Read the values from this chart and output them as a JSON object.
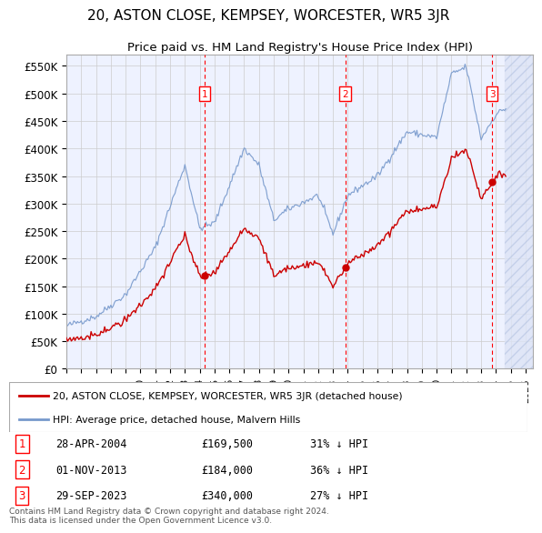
{
  "title": "20, ASTON CLOSE, KEMPSEY, WORCESTER, WR5 3JR",
  "subtitle": "Price paid vs. HM Land Registry's House Price Index (HPI)",
  "ylabel_ticks": [
    "£0",
    "£50K",
    "£100K",
    "£150K",
    "£200K",
    "£250K",
    "£300K",
    "£350K",
    "£400K",
    "£450K",
    "£500K",
    "£550K"
  ],
  "ytick_values": [
    0,
    50000,
    100000,
    150000,
    200000,
    250000,
    300000,
    350000,
    400000,
    450000,
    500000,
    550000
  ],
  "ylim": [
    0,
    570000
  ],
  "xlim_start": 1995.0,
  "xlim_end": 2026.5,
  "xtick_years": [
    1995,
    1996,
    1997,
    1998,
    1999,
    2000,
    2001,
    2002,
    2003,
    2004,
    2005,
    2006,
    2007,
    2008,
    2009,
    2010,
    2011,
    2012,
    2013,
    2014,
    2015,
    2016,
    2017,
    2018,
    2019,
    2020,
    2021,
    2022,
    2023,
    2024,
    2025,
    2026
  ],
  "plot_bg_color": "#eef2ff",
  "grid_color": "#cccccc",
  "hpi_color": "#7799cc",
  "price_color": "#cc0000",
  "legend_label_price": "20, ASTON CLOSE, KEMPSEY, WORCESTER, WR5 3JR (detached house)",
  "legend_label_hpi": "HPI: Average price, detached house, Malvern Hills",
  "transactions": [
    {
      "num": 1,
      "date": "28-APR-2004",
      "price": 169500,
      "pct": "31%",
      "dir": "↓",
      "x_year": 2004.32
    },
    {
      "num": 2,
      "date": "01-NOV-2013",
      "price": 184000,
      "pct": "36%",
      "dir": "↓",
      "x_year": 2013.83
    },
    {
      "num": 3,
      "date": "29-SEP-2023",
      "price": 340000,
      "pct": "27%",
      "dir": "↓",
      "x_year": 2023.75
    }
  ],
  "footer_text": "Contains HM Land Registry data © Crown copyright and database right 2024.\nThis data is licensed under the Open Government Licence v3.0.",
  "hatch_start": 2024.58
}
